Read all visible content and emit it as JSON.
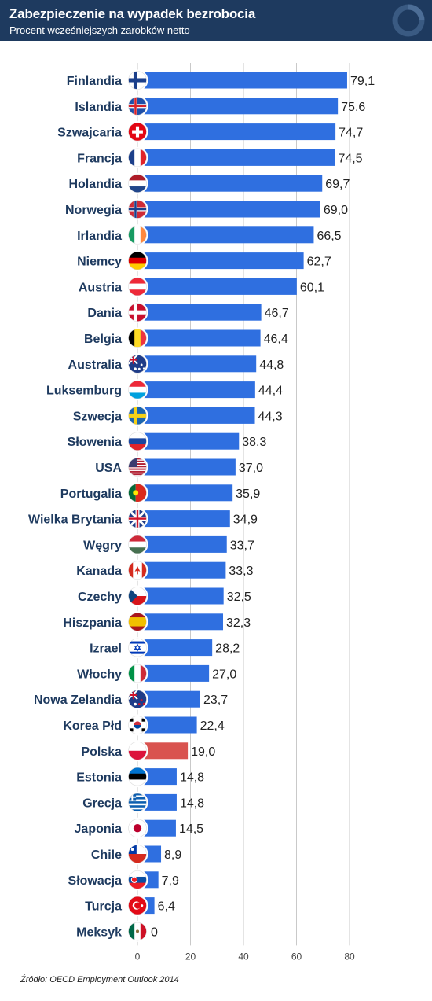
{
  "header": {
    "title": "Zabezpieczenie na wypadek bezrobocia",
    "subtitle": "Procent wcześniejszych zarobków netto"
  },
  "source": "Źródło: OECD Employment Outlook 2014",
  "colors": {
    "header_bg": "#1e3a5f",
    "bar_default": "#2f6fe0",
    "bar_highlight": "#d9534f",
    "label_text": "#1e3a5f"
  },
  "chart_data": {
    "type": "bar",
    "orientation": "horizontal",
    "title": "Zabezpieczenie na wypadek bezrobocia",
    "subtitle": "Procent wcześniejszych zarobków netto",
    "xlim": [
      0,
      80
    ],
    "x_ticks": [
      0,
      20,
      40,
      60,
      80
    ],
    "grid": true,
    "highlight": "Polska",
    "categories": [
      "Finlandia",
      "Islandia",
      "Szwajcaria",
      "Francja",
      "Holandia",
      "Norwegia",
      "Irlandia",
      "Niemcy",
      "Austria",
      "Dania",
      "Belgia",
      "Australia",
      "Luksemburg",
      "Szwecja",
      "Słowenia",
      "USA",
      "Portugalia",
      "Wielka Brytania",
      "Węgry",
      "Kanada",
      "Czechy",
      "Hiszpania",
      "Izrael",
      "Włochy",
      "Nowa Zelandia",
      "Korea Płd",
      "Polska",
      "Estonia",
      "Grecja",
      "Japonia",
      "Chile",
      "Słowacja",
      "Turcja",
      "Meksyk"
    ],
    "values": [
      79.1,
      75.6,
      74.7,
      74.5,
      69.7,
      69.0,
      66.5,
      62.7,
      60.1,
      46.7,
      46.4,
      44.8,
      44.4,
      44.3,
      38.3,
      37.0,
      35.9,
      34.9,
      33.7,
      33.3,
      32.5,
      32.3,
      28.2,
      27.0,
      23.7,
      22.4,
      19.0,
      14.8,
      14.8,
      14.5,
      8.9,
      7.9,
      6.4,
      0
    ],
    "value_labels": [
      "79,1",
      "75,6",
      "74,7",
      "74,5",
      "69,7",
      "69,0",
      "66,5",
      "62,7",
      "60,1",
      "46,7",
      "46,4",
      "44,8",
      "44,4",
      "44,3",
      "38,3",
      "37,0",
      "35,9",
      "34,9",
      "33,7",
      "33,3",
      "32,5",
      "32,3",
      "28,2",
      "27,0",
      "23,7",
      "22,4",
      "19,0",
      "14,8",
      "14,8",
      "14,5",
      "8,9",
      "7,9",
      "6,4",
      "0"
    ],
    "flags": [
      "fi-flag-icon",
      "is-flag-icon",
      "ch-flag-icon",
      "fr-flag-icon",
      "nl-flag-icon",
      "no-flag-icon",
      "ie-flag-icon",
      "de-flag-icon",
      "at-flag-icon",
      "dk-flag-icon",
      "be-flag-icon",
      "au-flag-icon",
      "lu-flag-icon",
      "se-flag-icon",
      "si-flag-icon",
      "us-flag-icon",
      "pt-flag-icon",
      "gb-flag-icon",
      "hu-flag-icon",
      "ca-flag-icon",
      "cz-flag-icon",
      "es-flag-icon",
      "il-flag-icon",
      "it-flag-icon",
      "nz-flag-icon",
      "kr-flag-icon",
      "pl-flag-icon",
      "ee-flag-icon",
      "gr-flag-icon",
      "jp-flag-icon",
      "cl-flag-icon",
      "sk-flag-icon",
      "tr-flag-icon",
      "mx-flag-icon"
    ]
  }
}
